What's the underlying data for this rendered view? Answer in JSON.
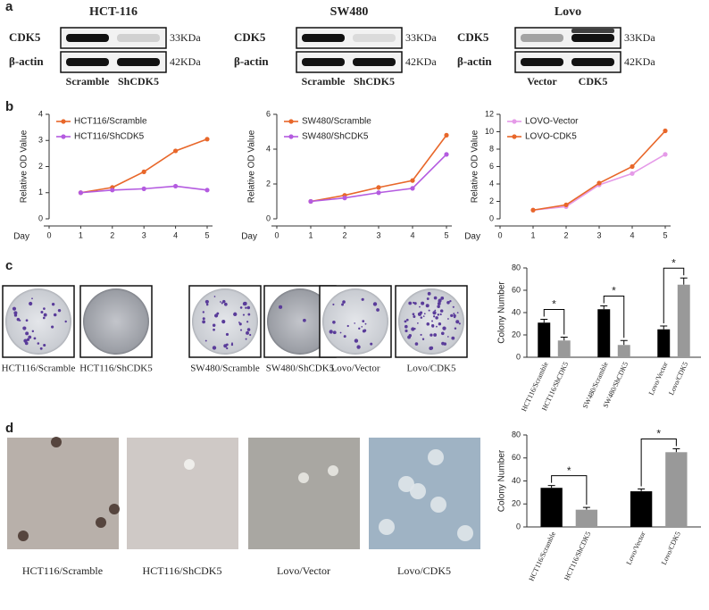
{
  "panel_labels": [
    "a",
    "b",
    "c",
    "d"
  ],
  "blots": [
    {
      "title": "HCT-116",
      "rows": [
        "CDK5",
        "β-actin"
      ],
      "sizes": [
        "33KDa",
        "42KDa"
      ],
      "lanes": [
        "Scramble",
        "ShCDK5"
      ]
    },
    {
      "title": "SW480",
      "rows": [
        "CDK5",
        "β-actin"
      ],
      "sizes": [
        "33KDa",
        "42KDa"
      ],
      "lanes": [
        "Scramble",
        "ShCDK5"
      ]
    },
    {
      "title": "Lovo",
      "rows": [
        "CDK5",
        "β-actin"
      ],
      "sizes": [
        "33KDa",
        "42KDa"
      ],
      "lanes": [
        "Vector",
        "CDK5"
      ]
    }
  ],
  "colony_photos": [
    "HCT116/Scramble",
    "HCT116/ShCDK5",
    "SW480/Scramble",
    "SW480/ShCDK5",
    "Lovo/Vector",
    "Lovo/CDK5"
  ],
  "soft_agar_photos": [
    "HCT116/Scramble",
    "HCT116/ShCDK5",
    "Lovo/Vector",
    "Lovo/CDK5"
  ],
  "chart_data": [
    {
      "type": "line",
      "x_label": "Day",
      "y_label": "Relative OD Value",
      "x": [
        1,
        2,
        3,
        4,
        5
      ],
      "xlim": [
        0,
        5
      ],
      "xticks": [
        0,
        1,
        2,
        3,
        4,
        5
      ],
      "ylim": [
        0,
        4
      ],
      "yticks": [
        0,
        1,
        2,
        3,
        4
      ],
      "series": [
        {
          "name": "HCT116/Scramble",
          "color": "#e8672a",
          "values": [
            1,
            1.2,
            1.8,
            2.6,
            3.05
          ]
        },
        {
          "name": "HCT116/ShCDK5",
          "color": "#b45be0",
          "values": [
            1,
            1.1,
            1.15,
            1.25,
            1.1
          ]
        }
      ]
    },
    {
      "type": "line",
      "x_label": "Day",
      "y_label": "Relative OD Value",
      "x": [
        1,
        2,
        3,
        4,
        5
      ],
      "xlim": [
        0,
        5
      ],
      "xticks": [
        0,
        1,
        2,
        3,
        4,
        5
      ],
      "ylim": [
        0,
        6
      ],
      "yticks": [
        0,
        2,
        4,
        6
      ],
      "series": [
        {
          "name": "SW480/Scramble",
          "color": "#e8672a",
          "values": [
            1,
            1.35,
            1.8,
            2.2,
            4.8
          ]
        },
        {
          "name": "SW480/ShCDK5",
          "color": "#b45be0",
          "values": [
            1,
            1.2,
            1.5,
            1.75,
            3.7
          ]
        }
      ]
    },
    {
      "type": "line",
      "x_label": "Day",
      "y_label": "Relative OD Value",
      "x": [
        1,
        2,
        3,
        4,
        5
      ],
      "xlim": [
        0,
        5
      ],
      "xticks": [
        0,
        1,
        2,
        3,
        4,
        5
      ],
      "ylim": [
        0,
        12
      ],
      "yticks": [
        0,
        2,
        4,
        6,
        8,
        10,
        12
      ],
      "series": [
        {
          "name": "LOVO-Vector",
          "color": "#e59ae8",
          "values": [
            1,
            1.4,
            3.9,
            5.2,
            7.4
          ]
        },
        {
          "name": "LOVO-CDK5",
          "color": "#e8672a",
          "values": [
            1,
            1.6,
            4.1,
            6.0,
            10.1
          ]
        }
      ]
    },
    {
      "type": "bar",
      "y_label": "Colony Number",
      "categories": [
        "HCT116/Scramble",
        "HCT116/ShCDK5",
        "SW480/Scramble",
        "SW480/ShCDK5",
        "Lovo/Vector",
        "Lovo/CDK5"
      ],
      "values": [
        31,
        15,
        43,
        11,
        25,
        65
      ],
      "errors": [
        3,
        3,
        3,
        4,
        3,
        6
      ],
      "colors": [
        "#000000",
        "#999999",
        "#000000",
        "#999999",
        "#000000",
        "#999999"
      ],
      "ylim": [
        0,
        80
      ],
      "yticks": [
        0,
        20,
        40,
        60,
        80
      ],
      "annotations": [
        "*",
        "*",
        "*"
      ]
    },
    {
      "type": "bar",
      "y_label": "Colony Number",
      "categories": [
        "HCT116/Scramble",
        "HCT116/ShCDK5",
        "Lovo/Vector",
        "Lovo/CDK5"
      ],
      "values": [
        34,
        15,
        31,
        65
      ],
      "errors": [
        2,
        2,
        2,
        3
      ],
      "colors": [
        "#000000",
        "#999999",
        "#000000",
        "#999999"
      ],
      "ylim": [
        0,
        80
      ],
      "yticks": [
        0,
        20,
        40,
        60,
        80
      ],
      "annotations": [
        "*",
        "*"
      ]
    }
  ]
}
